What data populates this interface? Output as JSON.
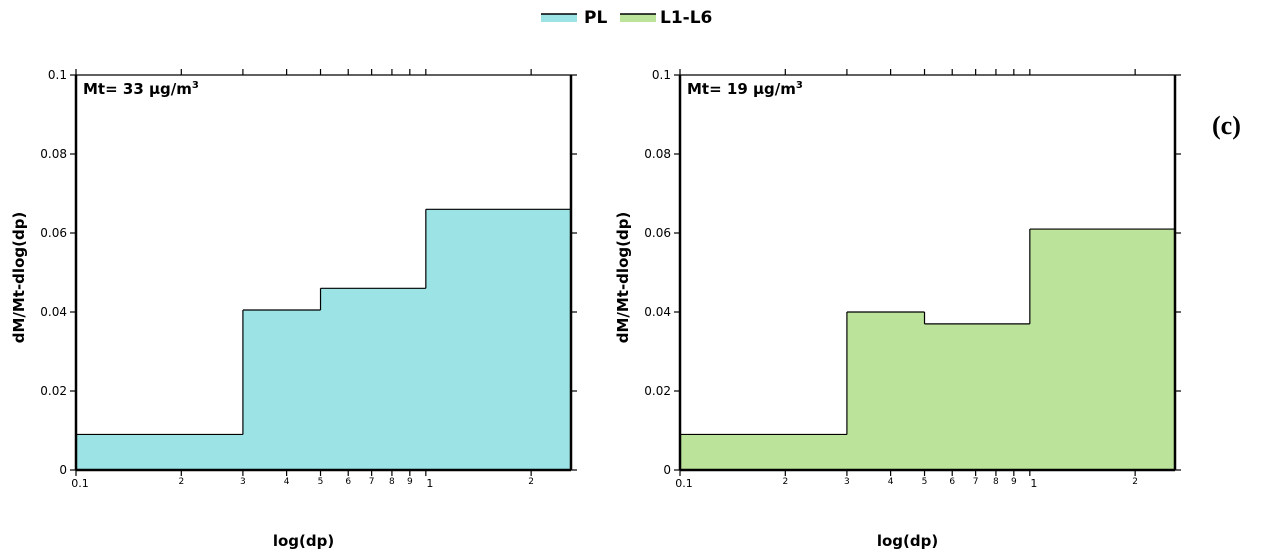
{
  "panel_label": "(c)",
  "legend": [
    {
      "label": "PL",
      "color": "#9be3e5"
    },
    {
      "label": "L1-L6",
      "color": "#bbe39a"
    }
  ],
  "chart_data": [
    {
      "type": "area",
      "title": "",
      "annotation": "Mt= 33 μg/m",
      "annotation_sup": "3",
      "xlabel": "log(dp)",
      "ylabel": "dM/Mt-dlog(dp)",
      "xscale": "log",
      "xlim": [
        0.1,
        2.6
      ],
      "ylim": [
        0,
        0.1
      ],
      "yticks": [
        0,
        0.02,
        0.04,
        0.06,
        0.08,
        0.1
      ],
      "ytick_labels": [
        "0",
        "0.02",
        "0.04",
        "0.06",
        "0.08",
        "0.1"
      ],
      "xticks": [
        0.1,
        0.2,
        0.3,
        0.4,
        0.5,
        0.6,
        0.7,
        0.8,
        0.9,
        1,
        2
      ],
      "xtick_labels": [
        "0.1",
        "2",
        "3",
        "4",
        "5",
        "6",
        "7",
        "8",
        "9",
        "1",
        "2"
      ],
      "grid": false,
      "fill_color": "#9be3e5",
      "series": [
        {
          "name": "PL",
          "bins": [
            {
              "x0": 0.1,
              "x1": 0.3,
              "value": 0.009
            },
            {
              "x0": 0.3,
              "x1": 0.5,
              "value": 0.0405
            },
            {
              "x0": 0.5,
              "x1": 1.0,
              "value": 0.046
            },
            {
              "x0": 1.0,
              "x1": 2.6,
              "value": 0.066
            }
          ]
        }
      ]
    },
    {
      "type": "area",
      "title": "",
      "annotation": "Mt= 19 μg/m",
      "annotation_sup": "3",
      "xlabel": "log(dp)",
      "ylabel": "dM/Mt-dlog(dp)",
      "xscale": "log",
      "xlim": [
        0.1,
        2.6
      ],
      "ylim": [
        0,
        0.1
      ],
      "yticks": [
        0,
        0.02,
        0.04,
        0.06,
        0.08,
        0.1
      ],
      "ytick_labels": [
        "0",
        "0.02",
        "0.04",
        "0.06",
        "0.08",
        "0.1"
      ],
      "xticks": [
        0.1,
        0.2,
        0.3,
        0.4,
        0.5,
        0.6,
        0.7,
        0.8,
        0.9,
        1,
        2
      ],
      "xtick_labels": [
        "0.1",
        "2",
        "3",
        "4",
        "5",
        "6",
        "7",
        "8",
        "9",
        "1",
        "2"
      ],
      "grid": false,
      "fill_color": "#bbe39a",
      "series": [
        {
          "name": "L1-L6",
          "bins": [
            {
              "x0": 0.1,
              "x1": 0.3,
              "value": 0.009
            },
            {
              "x0": 0.3,
              "x1": 0.5,
              "value": 0.04
            },
            {
              "x0": 0.5,
              "x1": 1.0,
              "value": 0.037
            },
            {
              "x0": 1.0,
              "x1": 2.6,
              "value": 0.061
            }
          ]
        }
      ]
    }
  ]
}
